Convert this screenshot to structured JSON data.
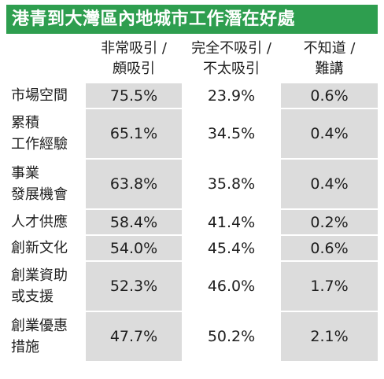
{
  "title": "港青到大灣區內地城市工作潛在好處",
  "columns": [
    {
      "line1": "非常吸引 /",
      "line2": "頗吸引"
    },
    {
      "line1": "完全不吸引 /",
      "line2": "不太吸引"
    },
    {
      "line1": "不知道 /",
      "line2": "難講"
    }
  ],
  "rows": [
    {
      "label1": "市場空間",
      "label2": "",
      "v1": "75.5%",
      "v2": "23.9%",
      "v3": "0.6%"
    },
    {
      "label1": "累積",
      "label2": "工作經驗",
      "v1": "65.1%",
      "v2": "34.5%",
      "v3": "0.4%"
    },
    {
      "label1": "事業",
      "label2": "發展機會",
      "v1": "63.8%",
      "v2": "35.8%",
      "v3": "0.4%"
    },
    {
      "label1": "人才供應",
      "label2": "",
      "v1": "58.4%",
      "v2": "41.4%",
      "v3": "0.2%"
    },
    {
      "label1": "創新文化",
      "label2": "",
      "v1": "54.0%",
      "v2": "45.4%",
      "v3": "0.6%"
    },
    {
      "label1": "創業資助",
      "label2": "或支援",
      "v1": "52.3%",
      "v2": "46.0%",
      "v3": "1.7%"
    },
    {
      "label1": "創業優惠",
      "label2": "措施",
      "v1": "47.7%",
      "v2": "50.2%",
      "v3": "2.1%"
    }
  ],
  "colors": {
    "title_bg": "#2e9e4f",
    "cell_shade": "#dcdcdc",
    "text": "#1e1e1e"
  }
}
